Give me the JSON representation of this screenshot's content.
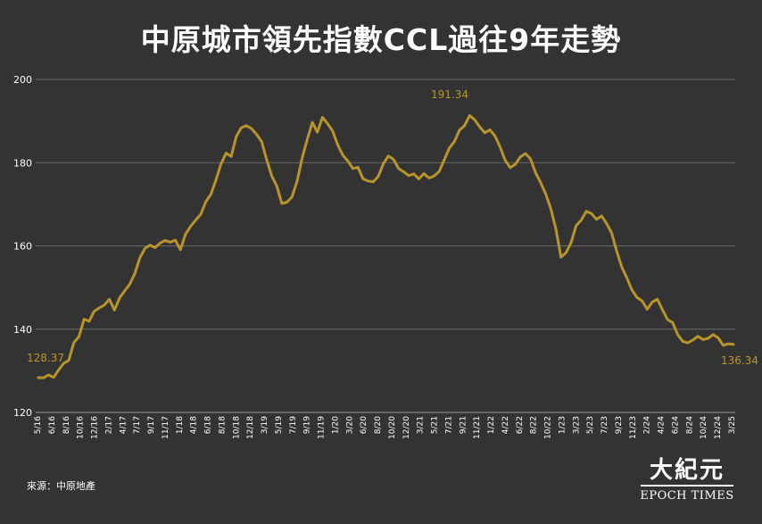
{
  "chart_data": {
    "type": "line",
    "title": "中原城市領先指數CCL過往9年走勢",
    "xlabel": "",
    "ylabel": "",
    "ylim": [
      120,
      200
    ],
    "yticks": [
      120,
      140,
      160,
      180,
      200
    ],
    "grid": true,
    "line_color": "#b8952a",
    "x_labels": [
      "5/16",
      "6/16",
      "8/16",
      "10/16",
      "12/16",
      "2/17",
      "4/17",
      "7/17",
      "9/17",
      "11/17",
      "1/18",
      "4/18",
      "6/18",
      "8/18",
      "10/18",
      "12/18",
      "3/19",
      "5/19",
      "7/19",
      "9/19",
      "11/19",
      "1/20",
      "3/20",
      "6/20",
      "8/20",
      "10/20",
      "12/20",
      "3/21",
      "5/21",
      "7/21",
      "9/21",
      "11/21",
      "1/22",
      "4/22",
      "6/22",
      "8/22",
      "10/22",
      "1/23",
      "3/23",
      "5/23",
      "7/23",
      "9/23",
      "11/23",
      "2/24",
      "4/24",
      "6/24",
      "8/24",
      "10/24",
      "12/24",
      "3/25"
    ],
    "series": [
      {
        "values": [
          128.37,
          128.3,
          129.0,
          128.4,
          130.2,
          131.8,
          132.5,
          136.8,
          138.2,
          142.4,
          141.9,
          144.3,
          145.1,
          145.8,
          147.2,
          144.6,
          147.5,
          149.2,
          150.8,
          153.3,
          157.1,
          159.4,
          160.2,
          159.6,
          160.7,
          161.3,
          160.9,
          161.4,
          159.1,
          162.8,
          164.7,
          166.2,
          167.6,
          170.6,
          172.4,
          175.8,
          179.7,
          182.3,
          181.5,
          186.3,
          188.4,
          188.9,
          188.2,
          186.8,
          185.1,
          180.7,
          176.8,
          174.4,
          170.2,
          170.5,
          171.8,
          175.6,
          181.2,
          185.6,
          189.7,
          187.3,
          190.9,
          189.4,
          187.6,
          184.3,
          181.8,
          180.4,
          178.6,
          178.9,
          176.1,
          175.6,
          175.4,
          176.7,
          179.8,
          181.6,
          180.8,
          178.6,
          177.8,
          176.9,
          177.3,
          176.1,
          177.4,
          176.3,
          176.8,
          177.9,
          180.7,
          183.5,
          185.1,
          187.8,
          188.9,
          191.34,
          190.3,
          188.6,
          187.2,
          187.9,
          186.4,
          183.8,
          180.6,
          178.8,
          179.6,
          181.4,
          182.2,
          180.9,
          177.6,
          175.2,
          172.5,
          168.9,
          164.1,
          157.3,
          158.4,
          160.8,
          164.9,
          166.2,
          168.3,
          167.8,
          166.4,
          167.2,
          165.4,
          163.1,
          158.7,
          154.9,
          152.3,
          149.4,
          147.6,
          146.8,
          144.8,
          146.5,
          147.2,
          144.7,
          142.3,
          141.6,
          138.7,
          137.1,
          136.7,
          137.4,
          138.3,
          137.5,
          137.8,
          138.7,
          137.9,
          136.1,
          136.5,
          136.34
        ]
      }
    ],
    "annotations": {
      "start_label": "128.37",
      "peak_label": "191.34",
      "end_label": "136.34"
    }
  },
  "source_text": "來源：中原地產",
  "logo": {
    "chinese": "大紀元",
    "english": "EPOCH TIMES"
  }
}
